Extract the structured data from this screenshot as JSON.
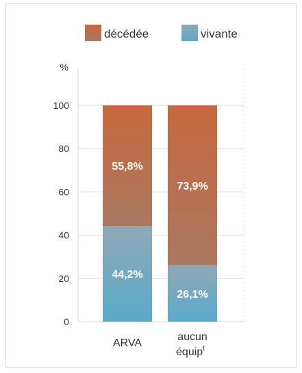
{
  "chart_data": {
    "type": "bar",
    "stacked": true,
    "categories": [
      "ARVA",
      "aucun équip"
    ],
    "category_superscripts": [
      "",
      "t"
    ],
    "series": [
      {
        "name": "vivante",
        "values": [
          44.2,
          26.1
        ],
        "color": "#5aa9c9",
        "color_top": "#8fa9b6"
      },
      {
        "name": "décédée",
        "values": [
          55.8,
          73.9
        ],
        "color": "#c8683e",
        "color_top": "#c8683e"
      }
    ],
    "data_labels": [
      [
        "44,2%",
        "26,1%"
      ],
      [
        "55,8%",
        "73,9%"
      ]
    ],
    "y_unit": "%",
    "yticks": [
      0,
      20,
      40,
      60,
      80,
      100
    ],
    "ylim": [
      0,
      100
    ],
    "grid": true,
    "legend": {
      "position": "top",
      "order": [
        "décédée",
        "vivante"
      ]
    }
  }
}
